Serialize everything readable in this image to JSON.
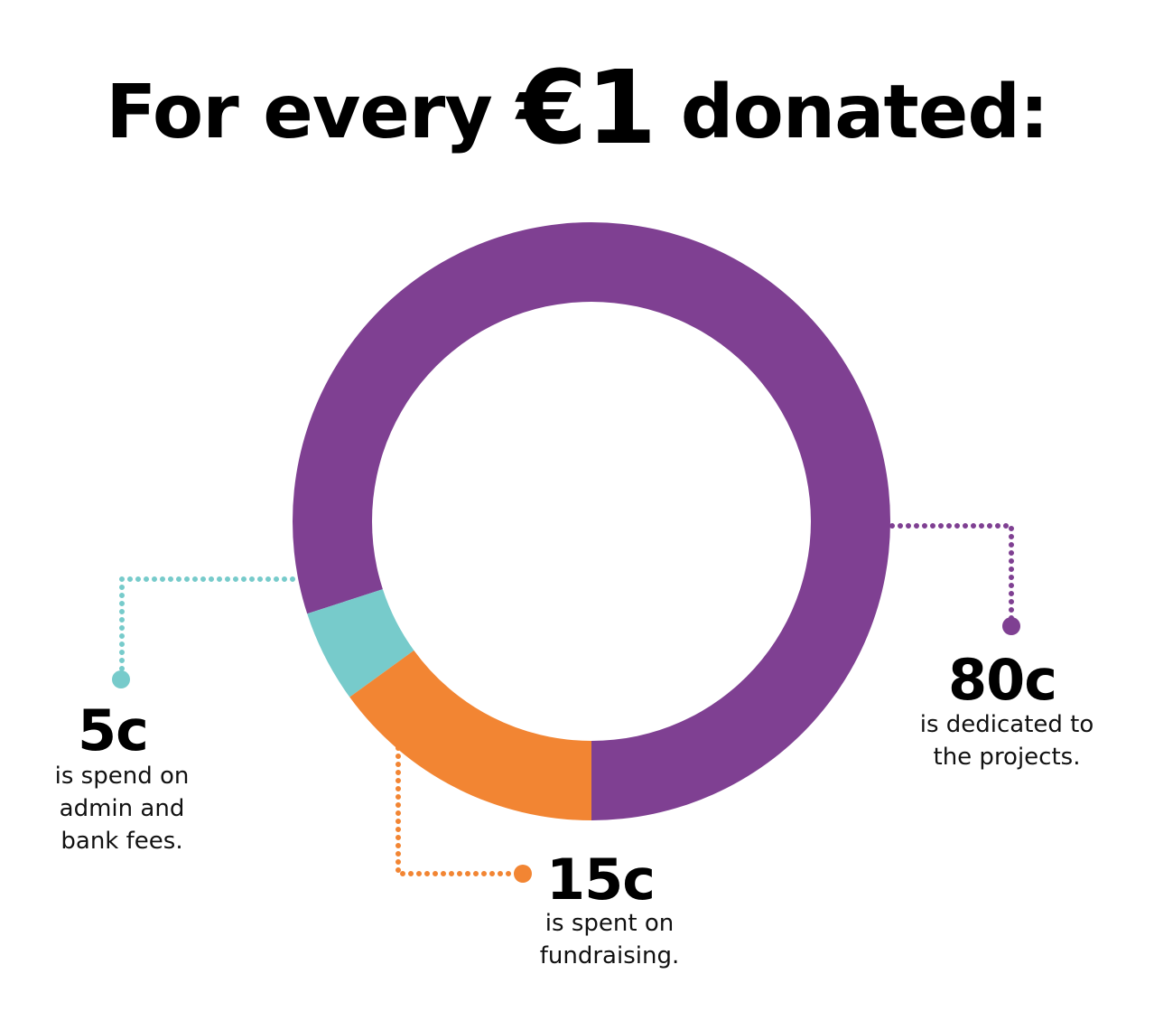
{
  "header": {
    "title_pre": "For every",
    "title_amount": "€1",
    "title_post": "donated:"
  },
  "chart_data": {
    "type": "pie",
    "variant": "donut",
    "title": "For every €1 donated:",
    "unit": "c",
    "slices": [
      {
        "label": "80c",
        "value": 80,
        "description": "is dedicated to\nthe projects.",
        "color": "#7f4092"
      },
      {
        "label": "5c",
        "value": 5,
        "description": "is spend on\nadmin and\nbank fees.",
        "color": "#77cbcb"
      },
      {
        "label": "15c",
        "value": 15,
        "description": "is spent on\nfundraising.",
        "color": "#f28533"
      }
    ]
  }
}
